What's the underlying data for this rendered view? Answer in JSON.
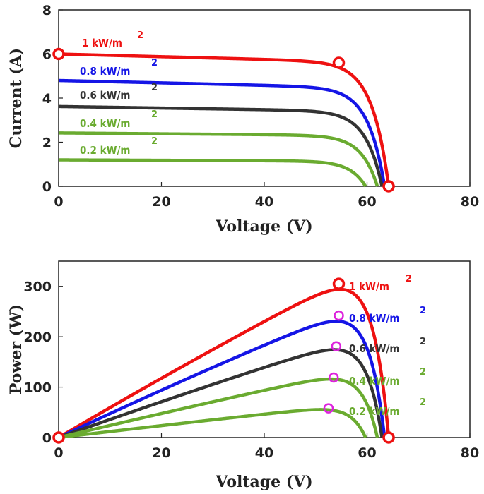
{
  "chart_data": [
    {
      "type": "line",
      "xlabel": "Voltage (V)",
      "ylabel": "Current (A)",
      "xlim": [
        0,
        80
      ],
      "ylim": [
        0,
        8
      ],
      "xticks": [
        "0",
        "20",
        "40",
        "60",
        "80"
      ],
      "yticks": [
        "0",
        "2",
        "4",
        "6",
        "8"
      ],
      "grid": false,
      "series": [
        {
          "name": "1 kW/m",
          "sup": "2",
          "color": "#ee1111",
          "isc": 6.0,
          "ratio": 0.935,
          "voc": 64.2
        },
        {
          "name": "0.8 kW/m",
          "sup": "2",
          "color": "#1515e6",
          "isc": 4.8,
          "ratio": 0.928,
          "voc": 63.4
        },
        {
          "name": "0.6 kW/m",
          "sup": "2",
          "color": "#333333",
          "isc": 3.62,
          "ratio": 0.938,
          "voc": 62.9
        },
        {
          "name": "0.4 kW/m",
          "sup": "2",
          "color": "#6aab30",
          "isc": 2.42,
          "ratio": 0.95,
          "voc": 62.0
        },
        {
          "name": "0.2 kW/m",
          "sup": "2",
          "color": "#6aab30",
          "isc": 1.2,
          "ratio": 0.95,
          "voc": 59.7
        }
      ],
      "markers": [
        {
          "x": 0,
          "y": 6.0,
          "color": "#ee1111"
        },
        {
          "x": 54.5,
          "y": 5.6,
          "color": "#ee1111"
        },
        {
          "x": 64.2,
          "y": 0,
          "color": "#ee1111"
        }
      ]
    },
    {
      "type": "line",
      "xlabel": "Voltage (V)",
      "ylabel": "Power (W)",
      "xlim": [
        0,
        80
      ],
      "ylim": [
        0,
        350
      ],
      "xticks": [
        "0",
        "20",
        "40",
        "60",
        "80"
      ],
      "yticks": [
        "0",
        "100",
        "200",
        "300"
      ],
      "grid": false,
      "series": [
        {
          "name": "1 kW/m",
          "sup": "2",
          "color": "#ee1111",
          "isc": 6.0,
          "ratio": 0.935,
          "voc": 64.2
        },
        {
          "name": "0.8 kW/m",
          "sup": "2",
          "color": "#1515e6",
          "isc": 4.8,
          "ratio": 0.928,
          "voc": 63.4
        },
        {
          "name": "0.6 kW/m",
          "sup": "2",
          "color": "#333333",
          "isc": 3.62,
          "ratio": 0.938,
          "voc": 62.9
        },
        {
          "name": "0.4 kW/m",
          "sup": "2",
          "color": "#6aab30",
          "isc": 2.42,
          "ratio": 0.95,
          "voc": 62.0
        },
        {
          "name": "0.2 kW/m",
          "sup": "2",
          "color": "#6aab30",
          "isc": 1.2,
          "ratio": 0.95,
          "voc": 59.7
        }
      ],
      "mpp": [
        {
          "x": 54.5,
          "y": 305,
          "color": "#ee1111"
        },
        {
          "x": 54.5,
          "y": 242,
          "color": "#dd22dd"
        },
        {
          "x": 54.0,
          "y": 181,
          "color": "#dd22dd"
        },
        {
          "x": 53.5,
          "y": 119,
          "color": "#dd22dd"
        },
        {
          "x": 52.5,
          "y": 58,
          "color": "#dd22dd"
        }
      ],
      "markers": [
        {
          "x": 0,
          "y": 0,
          "color": "#ee1111"
        },
        {
          "x": 64.2,
          "y": 0,
          "color": "#ee1111"
        }
      ]
    }
  ]
}
